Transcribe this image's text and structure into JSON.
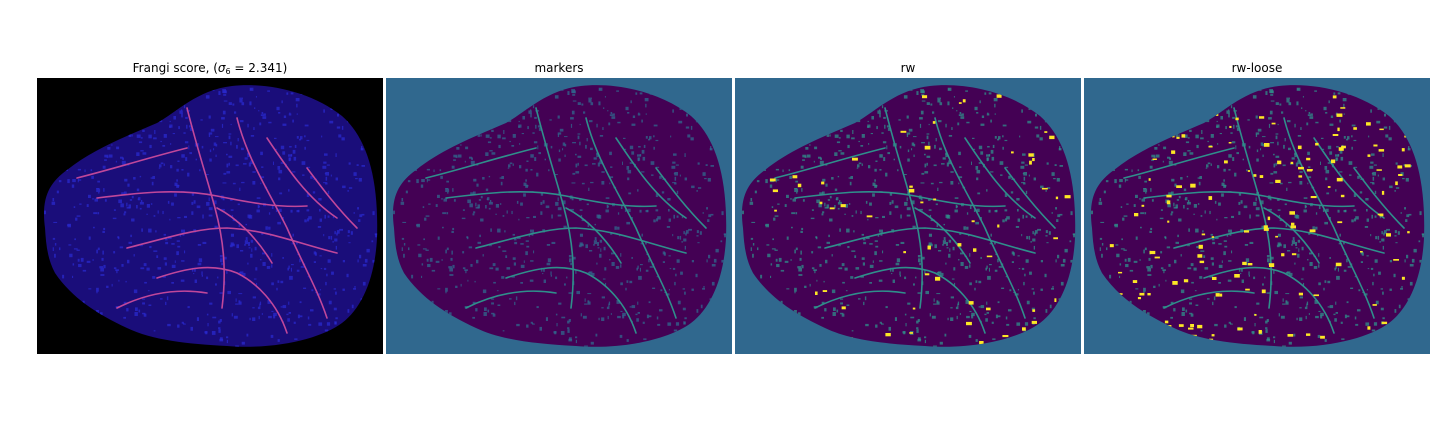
{
  "panels": [
    {
      "title": "Frangi score, (",
      "title_sigma": "σ",
      "title_sub": "6",
      "title_tail": " = 2.341)",
      "background": "#000000",
      "tissue_color": "#1a0d7a",
      "vessel_color": "#c0479a",
      "speck_color": "#2a2acf"
    },
    {
      "title": "markers",
      "background": "#30688e",
      "tissue_color": "#440154",
      "vessel_color": "#2f8f8b",
      "speck_color": "#30688e"
    },
    {
      "title": "rw",
      "background": "#30688e",
      "tissue_color": "#440154",
      "vessel_color": "#2f8f8b",
      "speck_color": "#fde725"
    },
    {
      "title": "rw-loose",
      "background": "#30688e",
      "tissue_color": "#440154",
      "vessel_color": "#2f8f8b",
      "speck_color": "#fde725"
    }
  ]
}
